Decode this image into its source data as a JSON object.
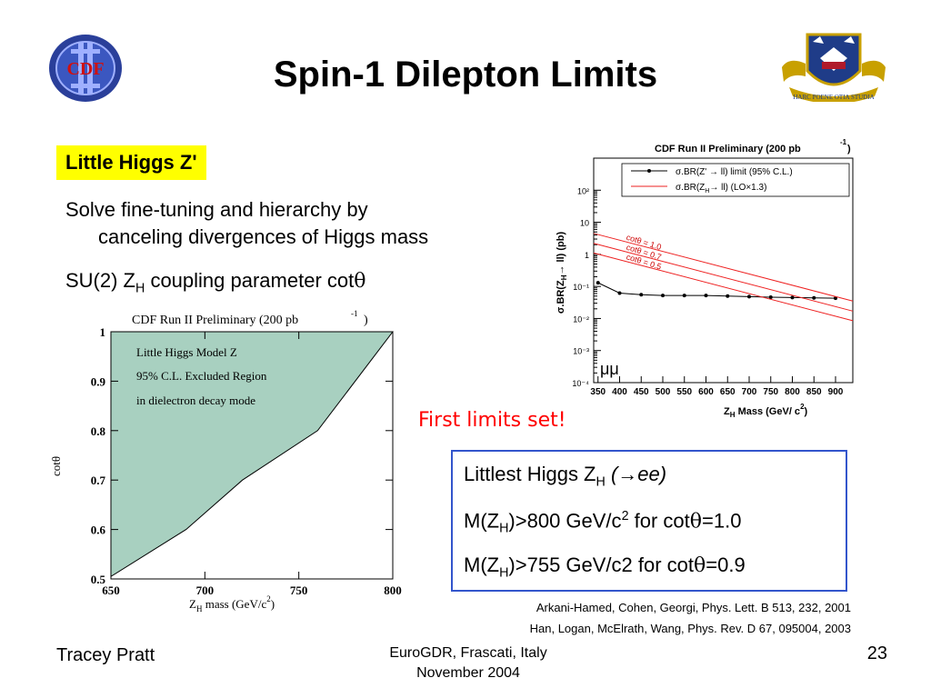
{
  "slide": {
    "title": "Spin-1 Dilepton Limits",
    "tag": "Little Higgs Z'",
    "bullet1_line1": "Solve fine-tuning and hierarchy by",
    "bullet1_line2": "canceling divergences of Higgs mass",
    "bullet2_pre": "SU(2) Z",
    "bullet2_sub": "H",
    "bullet2_post": " coupling parameter cot",
    "theta": "θ",
    "first_limits": "First limits set!",
    "box": {
      "line1_pre": "Littlest Higgs Z",
      "line1_sub": "H",
      "line1_post": " (→ee)",
      "line2_pre": "M(Z",
      "line2_sub": "H",
      "line2_mid": ")>800 GeV/c",
      "line2_sup": "2",
      "line2_post": " for cot",
      "line2_end": "=1.0",
      "line3_pre": "M(Z",
      "line3_sub": "H",
      "line3_mid": ")>755 GeV/c2 for cot",
      "line3_end": "=0.9"
    },
    "ref1": "Arkani-Hamed, Cohen, Georgi, Phys. Lett. B 513, 232, 2001",
    "ref2": "Han, Logan, McElrath, Wang, Phys. Rev. D 67, 095004, 2003",
    "author": "Tracey Pratt",
    "conf_line1": "EuroGDR, Frascati, Italy",
    "conf_line2": "November 2004",
    "page_number": "23",
    "logos": {
      "left": "CDF",
      "right_text": "HARC POENE OTIA STUDIA"
    }
  },
  "chart_data": [
    {
      "type": "area",
      "title": "CDF Run II Preliminary (200 pb",
      "title_sup": "-1",
      "title_end": ")",
      "xlabel": "Z",
      "xlabel_sub": "H",
      "xlabel_end": " mass (GeV/c",
      "xlabel_sup": "2",
      "xlabel_close": ")",
      "ylabel": "cotθ",
      "xlim": [
        650,
        800
      ],
      "ylim": [
        0.5,
        1.0
      ],
      "x_ticks": [
        "650",
        "700",
        "750",
        "800"
      ],
      "y_ticks": [
        "0.5",
        "0.6",
        "0.7",
        "0.8",
        "0.9",
        "1"
      ],
      "annotations": [
        "Little Higgs Model Z",
        "95% C.L. Excluded Region",
        "in dielectron decay mode"
      ],
      "boundary": {
        "x": [
          650,
          690,
          720,
          760,
          800
        ],
        "y": [
          0.505,
          0.6,
          0.7,
          0.8,
          1.0
        ]
      },
      "fill_color": "#a8d0c0"
    },
    {
      "type": "line",
      "title": "CDF Run II Preliminary (200 pb",
      "title_sup": "-1",
      "title_end": ")",
      "xlabel": "Z",
      "xlabel_sub": "H",
      "xlabel_end": " Mass (GeV/ c",
      "xlabel_sup": "2",
      "xlabel_close": ")",
      "ylabel": "σ.BR(Z",
      "ylabel_sub": "H",
      "ylabel_end": "→ ll) (pb)",
      "xlim": [
        340,
        940
      ],
      "ylim_log10": [
        -4,
        3
      ],
      "log_y": true,
      "x_ticks": [
        "350",
        "400",
        "450",
        "500",
        "550",
        "600",
        "650",
        "700",
        "750",
        "800",
        "850",
        "900"
      ],
      "y_ticks": [
        "10⁻⁴",
        "10⁻³",
        "10⁻²",
        "10⁻¹",
        "1",
        "10",
        "10²"
      ],
      "legend": [
        "σ.BR(Z'  → ll) limit (95% C.L.)",
        "σ.BR(Z_H→ ll) (LO×1.3)"
      ],
      "legend_position": "top-right",
      "channel_label": "μμ",
      "series": [
        {
          "name": "σ.BR(Z'  → ll) limit (95% C.L.)",
          "color": "#000000",
          "x": [
            350,
            400,
            450,
            500,
            550,
            600,
            650,
            700,
            750,
            800,
            850,
            900
          ],
          "y": [
            0.13,
            0.062,
            0.055,
            0.052,
            0.052,
            0.052,
            0.05,
            0.048,
            0.046,
            0.045,
            0.044,
            0.043
          ]
        },
        {
          "name": "cotθ = 1.0",
          "color": "#ee2222",
          "x": [
            340,
            940
          ],
          "y": [
            4.5,
            0.035
          ]
        },
        {
          "name": "cotθ = 0.7",
          "color": "#ee2222",
          "x": [
            340,
            940
          ],
          "y": [
            2.2,
            0.017
          ]
        },
        {
          "name": "cotθ = 0.5",
          "color": "#ee2222",
          "x": [
            340,
            940
          ],
          "y": [
            1.1,
            0.0085
          ]
        }
      ]
    }
  ]
}
